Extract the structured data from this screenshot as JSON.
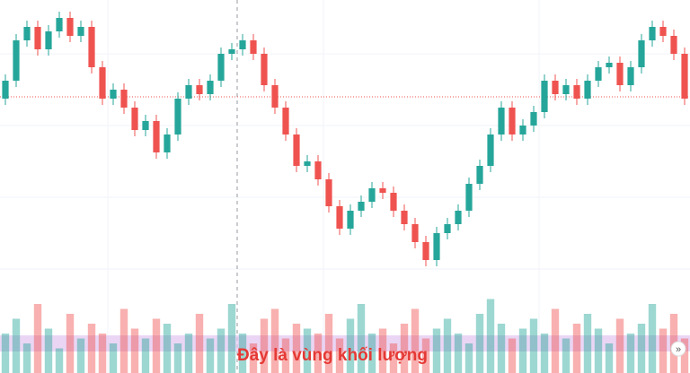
{
  "chart_data": {
    "type": "candlestick",
    "annotation": "Đây là vùng khối lượng",
    "ylim": [
      0,
      416
    ],
    "volume_lim": [
      0,
      100
    ],
    "up_color": "#26a69a",
    "down_color": "#ef5350",
    "band_color": "#e1c4f0",
    "price_line": 308,
    "open": [
      306,
      326,
      371,
      386,
      361,
      381,
      396,
      376,
      386,
      341,
      306,
      316,
      296,
      271,
      281,
      246,
      266,
      306,
      321,
      311,
      326,
      356,
      361,
      371,
      356,
      321,
      296,
      266,
      231,
      236,
      216,
      186,
      161,
      181,
      191,
      206,
      201,
      181,
      166,
      146,
      126,
      156,
      166,
      181,
      211,
      231,
      266,
      296,
      266,
      276,
      291,
      326,
      311,
      321,
      306,
      326,
      341,
      346,
      321,
      341,
      371,
      386,
      376,
      356
    ],
    "high": [
      333,
      378,
      393,
      393,
      388,
      403,
      403,
      393,
      393,
      348,
      323,
      323,
      303,
      288,
      288,
      273,
      313,
      328,
      328,
      333,
      363,
      368,
      378,
      378,
      363,
      328,
      303,
      273,
      243,
      243,
      223,
      193,
      188,
      198,
      213,
      213,
      208,
      188,
      173,
      153,
      163,
      173,
      188,
      218,
      238,
      273,
      303,
      303,
      283,
      298,
      333,
      333,
      328,
      328,
      333,
      348,
      353,
      353,
      348,
      378,
      393,
      393,
      383,
      363
    ],
    "low": [
      299,
      319,
      364,
      354,
      354,
      374,
      369,
      369,
      334,
      299,
      299,
      289,
      264,
      264,
      239,
      239,
      259,
      299,
      304,
      304,
      319,
      349,
      354,
      349,
      314,
      289,
      259,
      224,
      224,
      209,
      179,
      154,
      154,
      174,
      184,
      194,
      174,
      159,
      139,
      119,
      119,
      149,
      159,
      174,
      204,
      224,
      259,
      259,
      259,
      269,
      284,
      304,
      304,
      299,
      299,
      319,
      334,
      314,
      314,
      334,
      364,
      369,
      349,
      299
    ],
    "close": [
      326,
      371,
      386,
      361,
      381,
      396,
      376,
      386,
      341,
      306,
      316,
      296,
      271,
      281,
      246,
      266,
      306,
      321,
      311,
      326,
      356,
      361,
      371,
      356,
      321,
      296,
      266,
      231,
      236,
      216,
      186,
      161,
      181,
      191,
      206,
      201,
      181,
      166,
      146,
      126,
      156,
      166,
      181,
      211,
      231,
      266,
      296,
      266,
      276,
      291,
      326,
      311,
      321,
      306,
      326,
      341,
      346,
      321,
      341,
      371,
      386,
      376,
      356,
      306
    ],
    "volume": [
      40,
      55,
      30,
      70,
      45,
      25,
      60,
      35,
      50,
      40,
      30,
      65,
      45,
      35,
      55,
      50,
      30,
      40,
      60,
      35,
      45,
      70,
      40,
      30,
      55,
      65,
      35,
      50,
      45,
      40,
      60,
      35,
      55,
      70,
      40,
      45,
      30,
      50,
      65,
      35,
      45,
      55,
      40,
      30,
      60,
      75,
      50,
      35,
      45,
      55,
      40,
      65,
      35,
      50,
      60,
      45,
      30,
      55,
      40,
      50,
      70,
      45,
      60,
      35
    ]
  }
}
